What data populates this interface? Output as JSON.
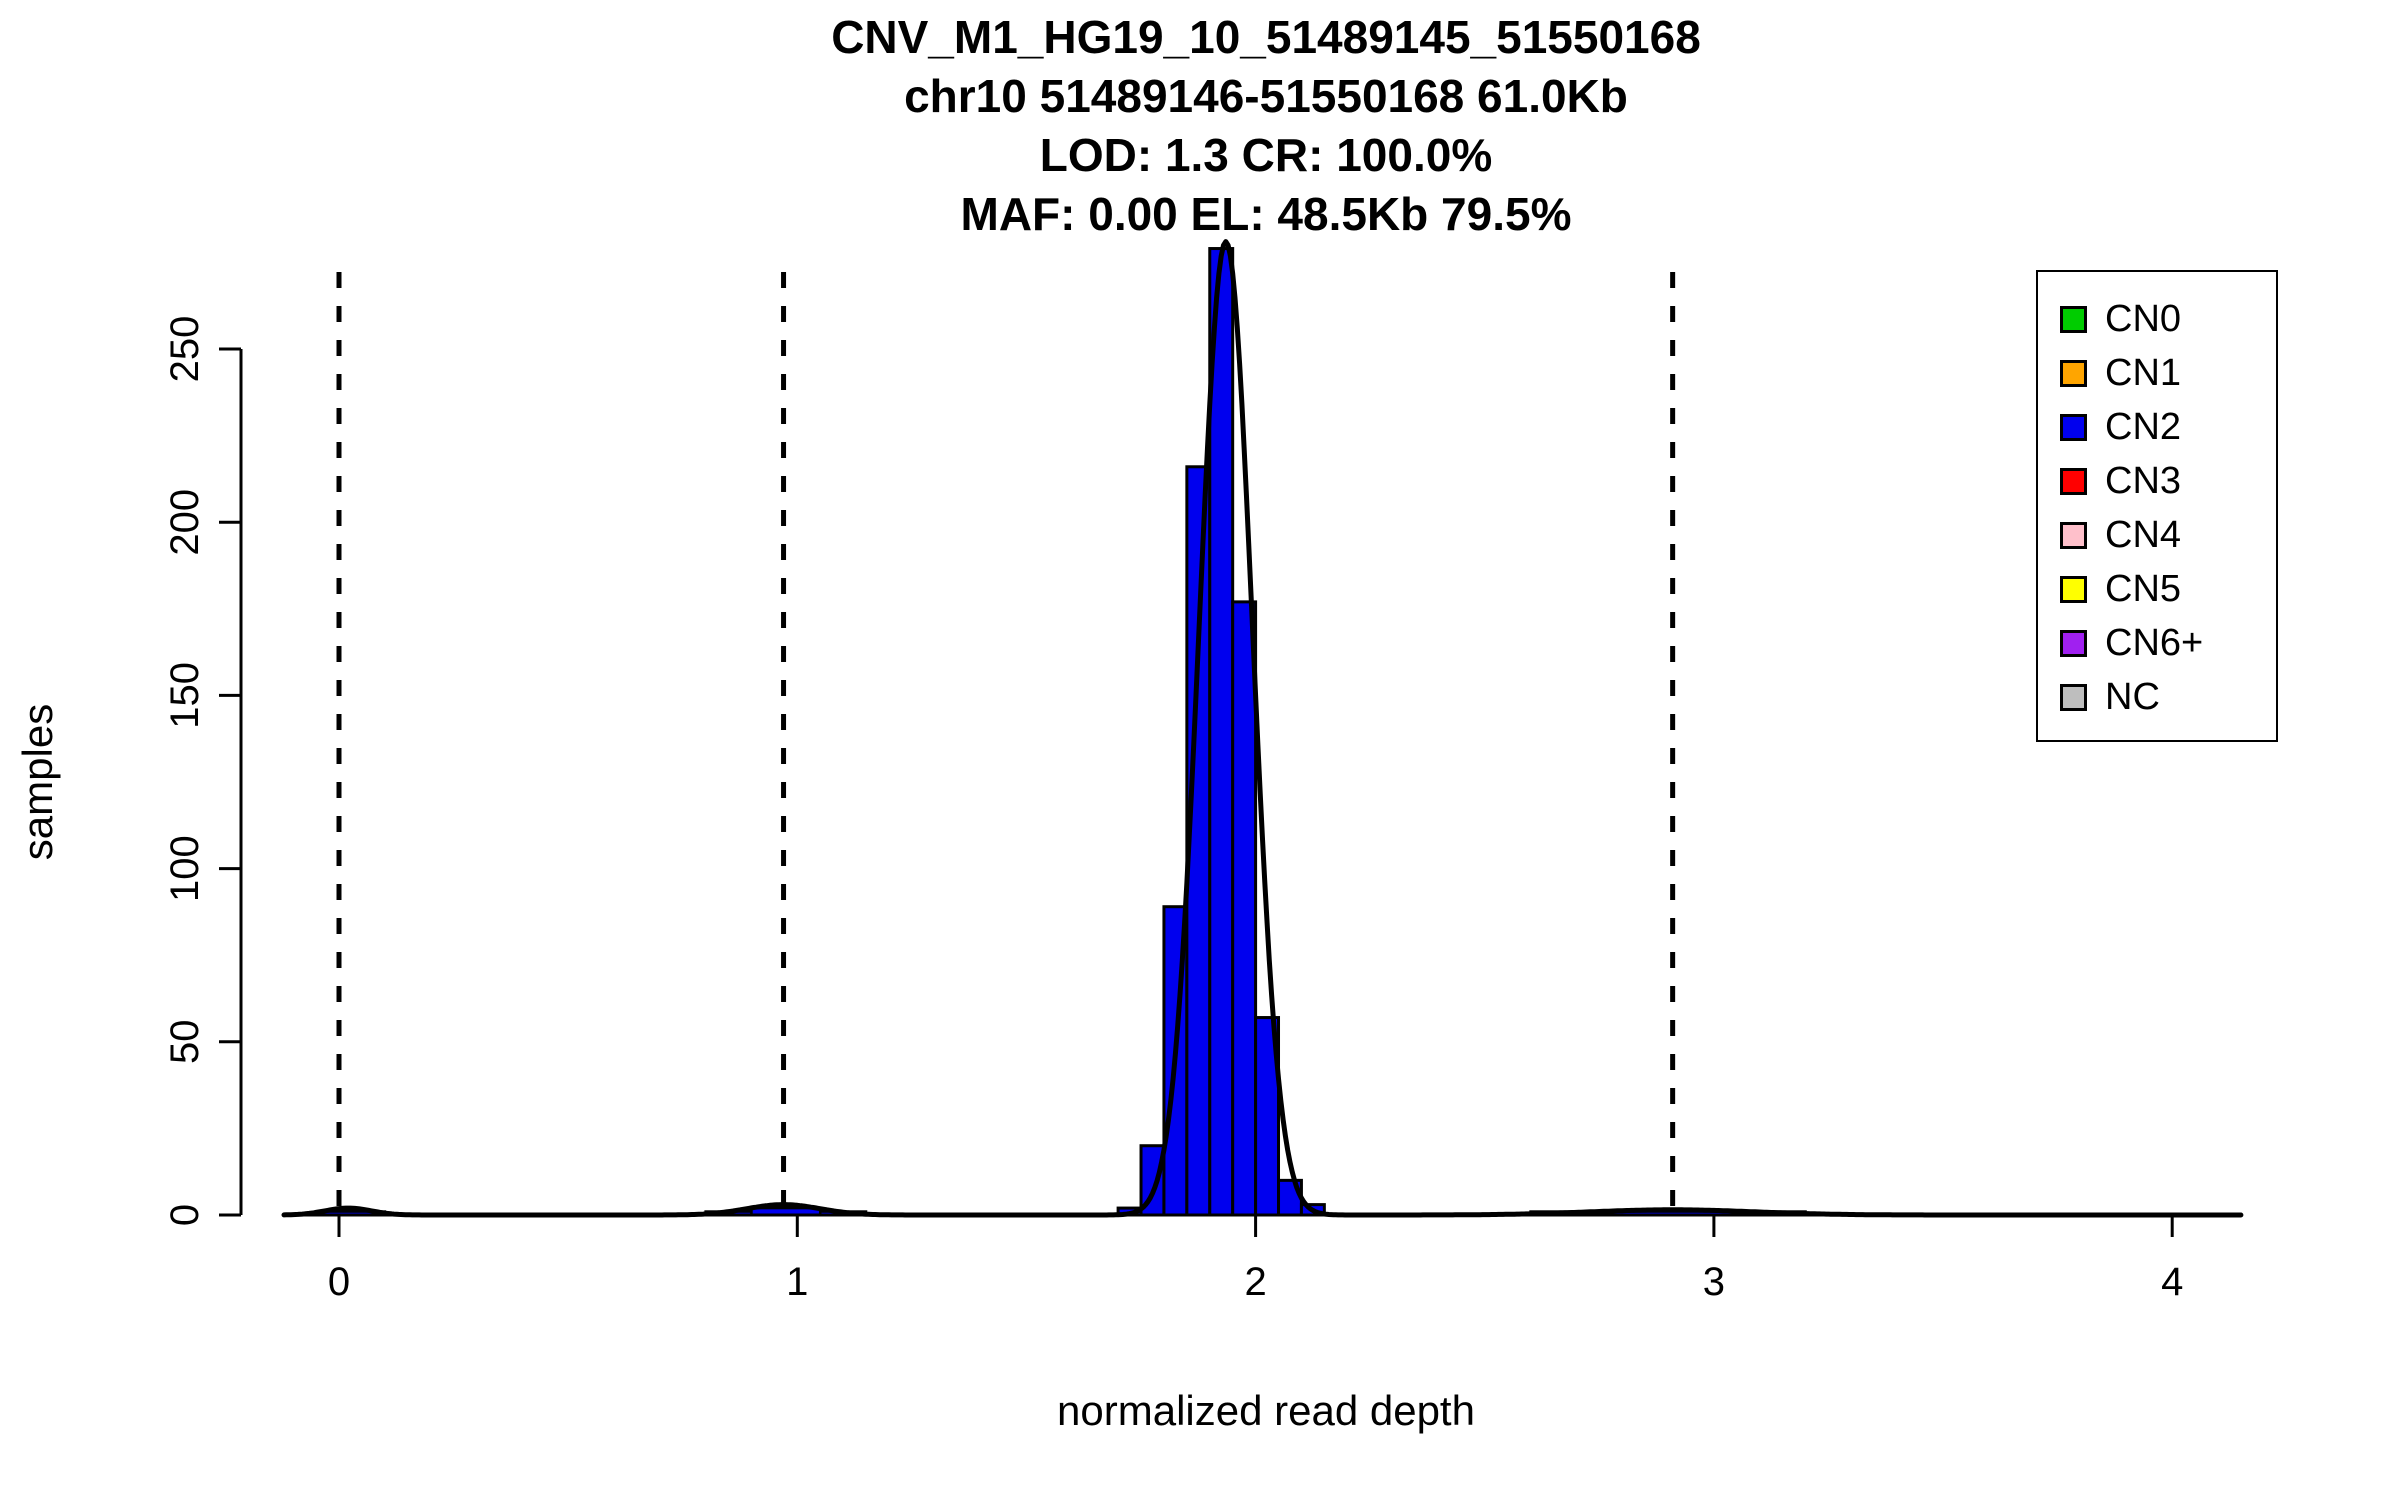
{
  "figure": {
    "title_lines": [
      "CNV_M1_HG19_10_51489145_51550168",
      "chr10 51489146-51550168 61.0Kb",
      "LOD: 1.3 CR: 100.0%",
      "MAF: 0.00 EL: 48.5Kb 79.5%"
    ],
    "x_axis": {
      "label": "normalized read depth",
      "ticks": [
        0,
        1,
        2,
        3,
        4
      ]
    },
    "y_axis": {
      "label": "samples",
      "ticks": [
        0,
        50,
        100,
        150,
        200,
        250
      ]
    }
  },
  "chart_data": {
    "type": "bar",
    "subtype": "histogram",
    "title": "CNV_M1_HG19_10_51489145_51550168",
    "subtitle_lines": [
      "chr10 51489146-51550168 61.0Kb",
      "LOD: 1.3 CR: 100.0%",
      "MAF: 0.00 EL: 48.5Kb 79.5%"
    ],
    "xlabel": "normalized read depth",
    "ylabel": "samples",
    "xlim": [
      -0.12,
      4.15
    ],
    "ylim": [
      0,
      250
    ],
    "grid": false,
    "legend_position": "top-right",
    "bins": {
      "start": 1.7,
      "width": 0.05,
      "counts": [
        2,
        20,
        89,
        216,
        279,
        177,
        57,
        10,
        3
      ]
    },
    "noise_bins": [
      {
        "x0": -0.04,
        "x1": 0.1,
        "count": 1
      },
      {
        "x0": 0.8,
        "x1": 0.9,
        "count": 1
      },
      {
        "x0": 0.9,
        "x1": 1.05,
        "count": 2
      },
      {
        "x0": 1.05,
        "x1": 1.15,
        "count": 1
      },
      {
        "x0": 2.6,
        "x1": 3.2,
        "count": 1
      }
    ],
    "dashed_lines_x": [
      0,
      0.97,
      1.94,
      2.91
    ],
    "curves": [
      {
        "mu": 1.935,
        "sigma": 0.058,
        "amplitude": 281
      },
      {
        "mu": 0.02,
        "sigma": 0.05,
        "amplitude": 2
      },
      {
        "mu": 0.97,
        "sigma": 0.08,
        "amplitude": 3
      },
      {
        "mu": 2.91,
        "sigma": 0.18,
        "amplitude": 1.5
      }
    ],
    "colors": {
      "bar_fill": "#0000EE",
      "bar_stroke": "#000000",
      "curve": "#000000",
      "dashed": "#000000",
      "axis": "#000000"
    }
  },
  "legend": {
    "items": [
      {
        "label": "CN0",
        "color": "#00CC00"
      },
      {
        "label": "CN1",
        "color": "#FFA500"
      },
      {
        "label": "CN2",
        "color": "#0000EE"
      },
      {
        "label": "CN3",
        "color": "#FF0000"
      },
      {
        "label": "CN4",
        "color": "#FFC0CB"
      },
      {
        "label": "CN5",
        "color": "#FFFF00"
      },
      {
        "label": "CN6+",
        "color": "#A020F0"
      },
      {
        "label": "NC",
        "color": "#BEBEBE"
      }
    ]
  }
}
